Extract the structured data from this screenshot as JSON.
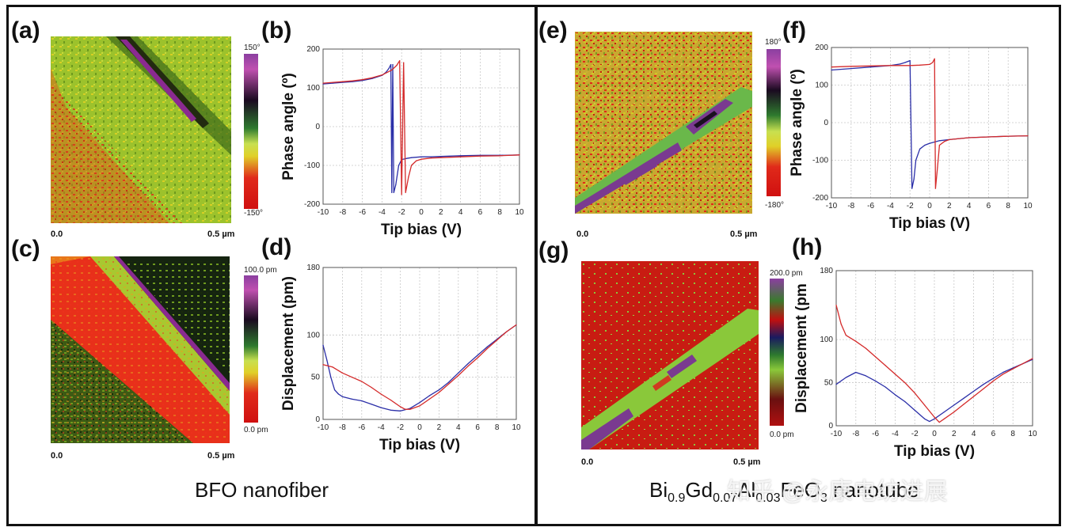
{
  "panels": {
    "a": "(a)",
    "b": "(b)",
    "c": "(c)",
    "d": "(d)",
    "e": "(e)",
    "f": "(f)",
    "g": "(g)",
    "h": "(h)"
  },
  "maps": {
    "a": {
      "scale_start": "0.0",
      "scale_end": "0.5 µm",
      "cbar_top": "150°",
      "cbar_bottom": "-150°"
    },
    "c": {
      "scale_start": "0.0",
      "scale_end": "0.5 µm",
      "cbar_top": "100.0 pm",
      "cbar_bottom": "0.0 pm"
    },
    "e": {
      "scale_start": "0.0",
      "scale_end": "0.5 µm",
      "cbar_top": "180°",
      "cbar_bottom": "-180°"
    },
    "g": {
      "scale_start": "0.0",
      "scale_end": "0.5 µm",
      "cbar_top": "200.0 pm",
      "cbar_bottom": "0.0 pm"
    }
  },
  "captions": {
    "left": "BFO nanofiber",
    "right_parts": [
      "Bi",
      "0.9",
      "Gd",
      "0.07",
      "Al",
      "0.03",
      "FeO",
      "3",
      " nanotube"
    ]
  },
  "watermark": "知乎 @永康电纺进展",
  "colors": {
    "blue": "#2b2fa8",
    "red": "#d42a2a",
    "grid": "#c8c8c8"
  },
  "chart_data": [
    {
      "id": "b",
      "type": "line",
      "title": "",
      "xlabel": "Tip bias (V)",
      "ylabel": "Phase angle (º)",
      "xlim": [
        -10,
        10
      ],
      "ylim": [
        -200,
        200
      ],
      "xticks": [
        -10,
        -8,
        -6,
        -4,
        -2,
        0,
        2,
        4,
        6,
        8,
        10
      ],
      "yticks": [
        -200,
        -100,
        0,
        100,
        200
      ],
      "series": [
        {
          "color": "blue",
          "x": [
            -10,
            -9,
            -8,
            -7,
            -6,
            -5,
            -4,
            -3.6,
            -3.3,
            -3.1,
            -3.0,
            -2.9,
            -2.8,
            -2.6,
            -2.3,
            -2,
            -1.5,
            -1,
            0,
            1,
            2,
            4,
            6,
            8,
            10
          ],
          "y": [
            110,
            112,
            114,
            116,
            119,
            124,
            132,
            140,
            150,
            160,
            -170,
            160,
            -170,
            -150,
            -100,
            -85,
            -82,
            -80,
            -78,
            -78,
            -77,
            -75,
            -74,
            -74,
            -73
          ]
        },
        {
          "color": "red",
          "x": [
            -10,
            -9,
            -8,
            -7,
            -6,
            -5,
            -4,
            -3,
            -2.5,
            -2.2,
            -2.0,
            -1.8,
            -1.6,
            -1.3,
            -1,
            -0.5,
            0,
            1,
            2,
            4,
            6,
            8,
            10
          ],
          "y": [
            112,
            114,
            116,
            118,
            121,
            126,
            133,
            146,
            158,
            170,
            -175,
            165,
            -170,
            -130,
            -100,
            -88,
            -84,
            -81,
            -80,
            -78,
            -76,
            -75,
            -73
          ]
        }
      ]
    },
    {
      "id": "d",
      "type": "line",
      "title": "",
      "xlabel": "Tip bias (V)",
      "ylabel": "Displacement (pm)",
      "xlim": [
        -10,
        10
      ],
      "ylim": [
        0,
        180
      ],
      "xticks": [
        -10,
        -8,
        -6,
        -4,
        -2,
        0,
        2,
        4,
        6,
        8,
        10
      ],
      "yticks": [
        0,
        50,
        100,
        180
      ],
      "series": [
        {
          "color": "blue",
          "x": [
            -10,
            -9.6,
            -9.2,
            -8.8,
            -8.4,
            -8,
            -7,
            -6,
            -5,
            -4,
            -3,
            -2,
            -1,
            0,
            1,
            2,
            3,
            4,
            5,
            6,
            7,
            8,
            9,
            10
          ],
          "y": [
            88,
            70,
            50,
            35,
            30,
            27,
            24,
            22,
            18,
            14,
            11,
            10,
            13,
            20,
            28,
            35,
            44,
            55,
            66,
            76,
            86,
            95,
            104,
            112
          ]
        },
        {
          "color": "red",
          "x": [
            -10,
            -9,
            -8,
            -7,
            -6,
            -5,
            -4,
            -3,
            -2,
            -1.5,
            -1,
            0,
            1,
            2,
            3,
            4,
            5,
            6,
            7,
            8,
            9,
            10
          ],
          "y": [
            65,
            62,
            55,
            50,
            45,
            38,
            30,
            23,
            15,
            12,
            12,
            16,
            24,
            32,
            42,
            52,
            63,
            73,
            84,
            94,
            104,
            112
          ]
        }
      ]
    },
    {
      "id": "f",
      "type": "line",
      "title": "",
      "xlabel": "Tip bias (V)",
      "ylabel": "Phase angle (º)",
      "xlim": [
        -10,
        10
      ],
      "ylim": [
        -200,
        200
      ],
      "xticks": [
        -10,
        -8,
        -6,
        -4,
        -2,
        0,
        2,
        4,
        6,
        8,
        10
      ],
      "yticks": [
        -200,
        -100,
        0,
        100,
        200
      ],
      "series": [
        {
          "color": "blue",
          "x": [
            -10,
            -8,
            -6,
            -4,
            -3,
            -2.5,
            -2.0,
            -1.8,
            -1.6,
            -1.4,
            -1.0,
            -0.5,
            0,
            1,
            2,
            4,
            6,
            8,
            10
          ],
          "y": [
            140,
            144,
            148,
            152,
            156,
            160,
            165,
            -175,
            -150,
            -100,
            -70,
            -60,
            -55,
            -48,
            -45,
            -40,
            -38,
            -36,
            -35
          ]
        },
        {
          "color": "red",
          "x": [
            -10,
            -8,
            -6,
            -4,
            -2,
            -1,
            0,
            0.3,
            0.5,
            0.6,
            0.8,
            1.0,
            1.5,
            2,
            4,
            6,
            8,
            10
          ],
          "y": [
            148,
            150,
            151,
            152,
            152,
            153,
            155,
            160,
            170,
            -175,
            -120,
            -60,
            -50,
            -45,
            -40,
            -38,
            -36,
            -35
          ]
        }
      ]
    },
    {
      "id": "h",
      "type": "line",
      "title": "",
      "xlabel": "Tip bias (V)",
      "ylabel": "Displacement (pm",
      "xlim": [
        -10,
        10
      ],
      "ylim": [
        0,
        180
      ],
      "xticks": [
        -10,
        -8,
        -6,
        -4,
        -2,
        0,
        2,
        4,
        6,
        8,
        10
      ],
      "yticks": [
        0,
        50,
        100,
        180
      ],
      "series": [
        {
          "color": "blue",
          "x": [
            -10,
            -9,
            -8,
            -7,
            -6,
            -5,
            -4,
            -3,
            -2,
            -1,
            -0.5,
            0,
            1,
            2,
            3,
            4,
            5,
            6,
            7,
            8,
            9,
            10
          ],
          "y": [
            48,
            56,
            62,
            58,
            52,
            45,
            36,
            28,
            18,
            8,
            5,
            8,
            16,
            24,
            32,
            40,
            48,
            55,
            62,
            67,
            72,
            77
          ]
        },
        {
          "color": "red",
          "x": [
            -10,
            -9.5,
            -9,
            -8,
            -7,
            -6,
            -5,
            -4,
            -3,
            -2,
            -1,
            0,
            0.5,
            1,
            2,
            3,
            4,
            5,
            6,
            7,
            8,
            9,
            10
          ],
          "y": [
            140,
            118,
            105,
            98,
            90,
            80,
            70,
            60,
            50,
            38,
            24,
            10,
            4,
            8,
            16,
            25,
            34,
            43,
            52,
            60,
            66,
            72,
            78
          ]
        }
      ]
    }
  ]
}
